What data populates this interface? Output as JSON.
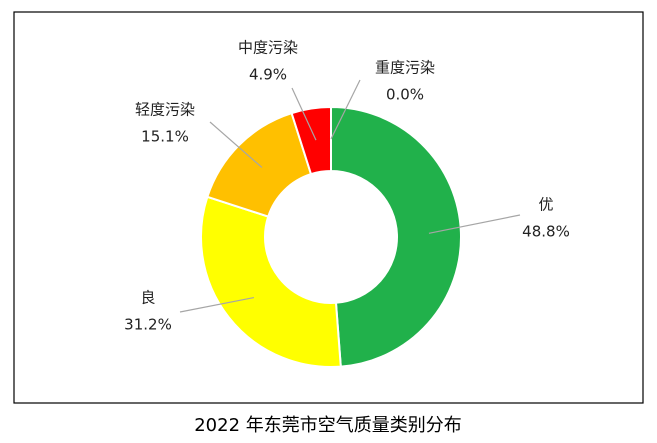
{
  "chart_data": {
    "type": "donut",
    "title": "2022 年东莞市空气质量类别分布",
    "categories": [
      "优",
      "良",
      "轻度污染",
      "中度污染",
      "重度污染"
    ],
    "values": [
      48.8,
      31.2,
      15.1,
      4.9,
      0.0
    ],
    "value_labels": [
      "48.8%",
      "31.2%",
      "15.1%",
      "4.9%",
      "0.0%"
    ],
    "colors": [
      "#21b14b",
      "#ffff00",
      "#ffc000",
      "#ff0000",
      "#7030a0"
    ]
  }
}
